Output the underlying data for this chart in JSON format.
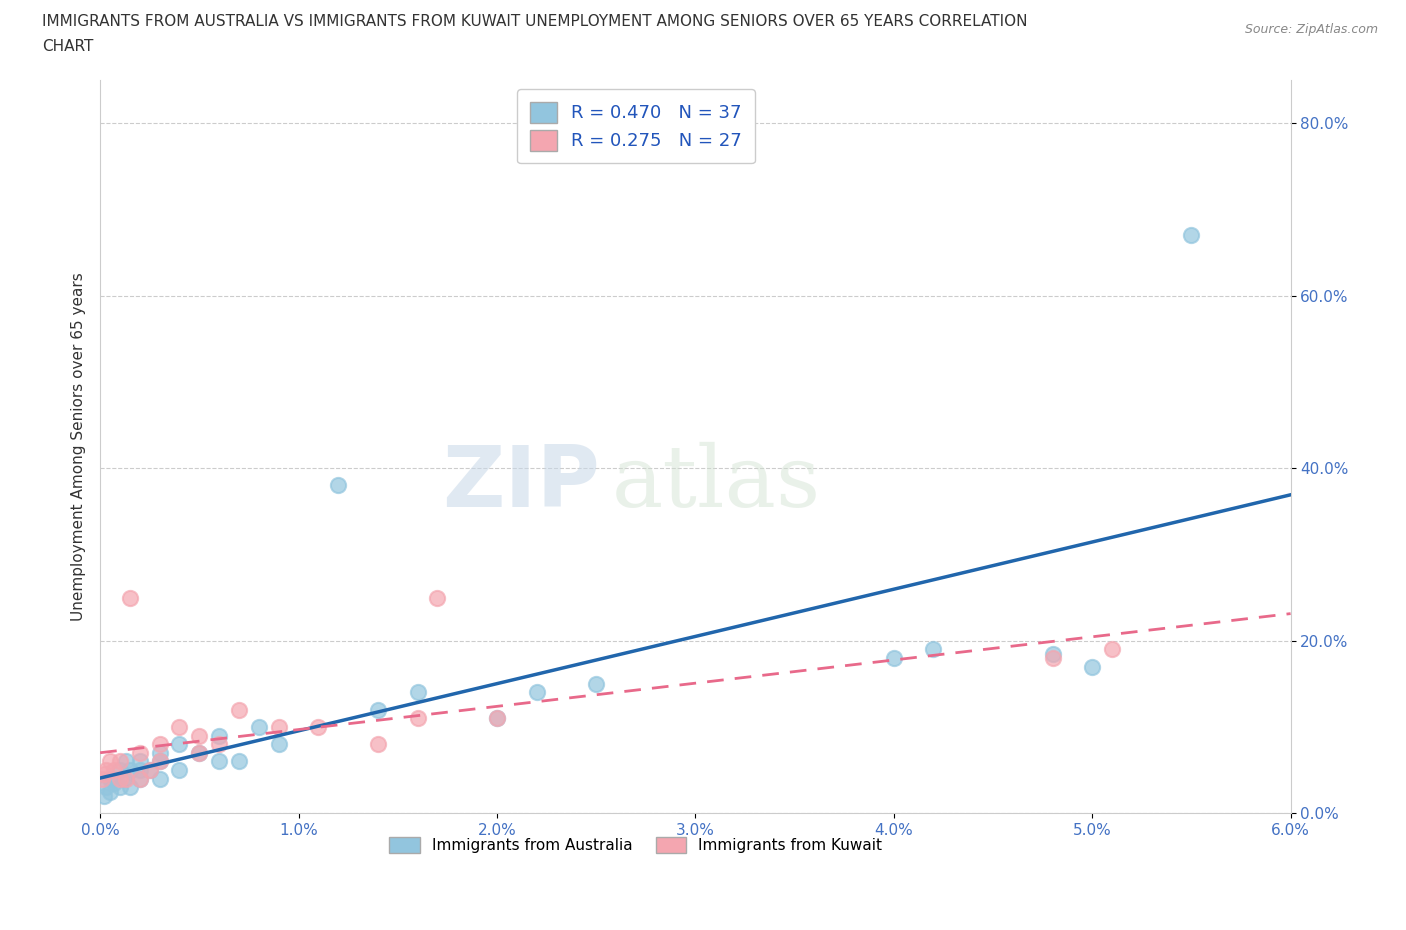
{
  "title_line1": "IMMIGRANTS FROM AUSTRALIA VS IMMIGRANTS FROM KUWAIT UNEMPLOYMENT AMONG SENIORS OVER 65 YEARS CORRELATION",
  "title_line2": "CHART",
  "source": "Source: ZipAtlas.com",
  "ylabel": "Unemployment Among Seniors over 65 years",
  "xlim": [
    0.0,
    0.06
  ],
  "ylim": [
    0.0,
    0.85
  ],
  "xticks": [
    0.0,
    0.01,
    0.02,
    0.03,
    0.04,
    0.05,
    0.06
  ],
  "yticks": [
    0.0,
    0.2,
    0.4,
    0.6,
    0.8
  ],
  "ytick_labels": [
    "0.0%",
    "20.0%",
    "40.0%",
    "60.0%",
    "80.0%"
  ],
  "xtick_labels": [
    "0.0%",
    "1.0%",
    "2.0%",
    "3.0%",
    "4.0%",
    "5.0%",
    "6.0%"
  ],
  "australia_color": "#92C5DE",
  "kuwait_color": "#F4A6B0",
  "australia_line_color": "#2166AC",
  "kuwait_line_color": "#E8698A",
  "background_color": "#FFFFFF",
  "grid_color": "#CCCCCC",
  "R_australia": 0.47,
  "N_australia": 37,
  "R_kuwait": 0.275,
  "N_kuwait": 27,
  "watermark_zip": "ZIP",
  "watermark_atlas": "atlas",
  "legend_label_australia": "Immigrants from Australia",
  "legend_label_kuwait": "Immigrants from Kuwait",
  "australia_x": [
    0.0002,
    0.0003,
    0.0005,
    0.0005,
    0.0007,
    0.001,
    0.001,
    0.0012,
    0.0013,
    0.0015,
    0.0015,
    0.002,
    0.002,
    0.002,
    0.0025,
    0.003,
    0.003,
    0.003,
    0.004,
    0.004,
    0.005,
    0.006,
    0.006,
    0.007,
    0.008,
    0.009,
    0.012,
    0.014,
    0.016,
    0.02,
    0.022,
    0.025,
    0.04,
    0.042,
    0.048,
    0.05,
    0.055
  ],
  "australia_y": [
    0.02,
    0.03,
    0.025,
    0.04,
    0.035,
    0.03,
    0.05,
    0.04,
    0.06,
    0.03,
    0.05,
    0.04,
    0.05,
    0.06,
    0.05,
    0.04,
    0.06,
    0.07,
    0.05,
    0.08,
    0.07,
    0.06,
    0.09,
    0.06,
    0.1,
    0.08,
    0.38,
    0.12,
    0.14,
    0.11,
    0.14,
    0.15,
    0.18,
    0.19,
    0.185,
    0.17,
    0.67
  ],
  "kuwait_x": [
    0.0001,
    0.0002,
    0.0003,
    0.0005,
    0.0007,
    0.001,
    0.001,
    0.0013,
    0.0015,
    0.002,
    0.002,
    0.0025,
    0.003,
    0.003,
    0.004,
    0.005,
    0.005,
    0.006,
    0.007,
    0.009,
    0.011,
    0.014,
    0.016,
    0.017,
    0.02,
    0.048,
    0.051
  ],
  "kuwait_y": [
    0.04,
    0.045,
    0.05,
    0.06,
    0.05,
    0.04,
    0.06,
    0.04,
    0.25,
    0.04,
    0.07,
    0.05,
    0.06,
    0.08,
    0.1,
    0.07,
    0.09,
    0.08,
    0.12,
    0.1,
    0.1,
    0.08,
    0.11,
    0.25,
    0.11,
    0.18,
    0.19
  ]
}
